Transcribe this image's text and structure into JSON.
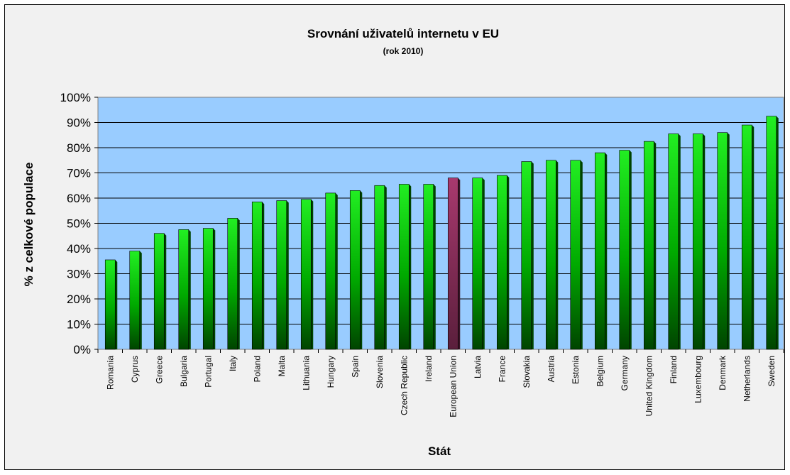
{
  "chart_data": {
    "type": "bar",
    "title": "Srovnání uživatelů internetu v EU",
    "subtitle": "(rok 2010)",
    "xlabel": "Stát",
    "ylabel": "% z celkové populace",
    "ylim": [
      0,
      100
    ],
    "yticks": [
      "0%",
      "10%",
      "20%",
      "30%",
      "40%",
      "50%",
      "60%",
      "70%",
      "80%",
      "90%",
      "100%"
    ],
    "grid": true,
    "categories": [
      "Romania",
      "Cyprus",
      "Greece",
      "Bulgaria",
      "Portugal",
      "Italy",
      "Poland",
      "Malta",
      "Lithuania",
      "Hungary",
      "Spain",
      "Slovenia",
      "Czech Republic",
      "Ireland",
      "European Union",
      "Latvia",
      "France",
      "Slovakia",
      "Austria",
      "Estonia",
      "Belgium",
      "Germany",
      "United Kingdom",
      "Finland",
      "Luxembourg",
      "Denmark",
      "Netherlands",
      "Sweden"
    ],
    "values": [
      35.5,
      39,
      46,
      47.5,
      48,
      52,
      58.5,
      59,
      59.5,
      62,
      63,
      65,
      65.5,
      65.5,
      68,
      68,
      69,
      74.5,
      75,
      75,
      78,
      79,
      82.5,
      85.5,
      85.5,
      86,
      89,
      92.5
    ],
    "colors": {
      "bar": "#00dd00",
      "bar_dark": "#004400",
      "highlight": "#993366",
      "highlight_dark": "#3a1426",
      "plot_background": "#99ccff",
      "chart_background": "#f1f1f1"
    },
    "highlight_category": "European Union"
  }
}
